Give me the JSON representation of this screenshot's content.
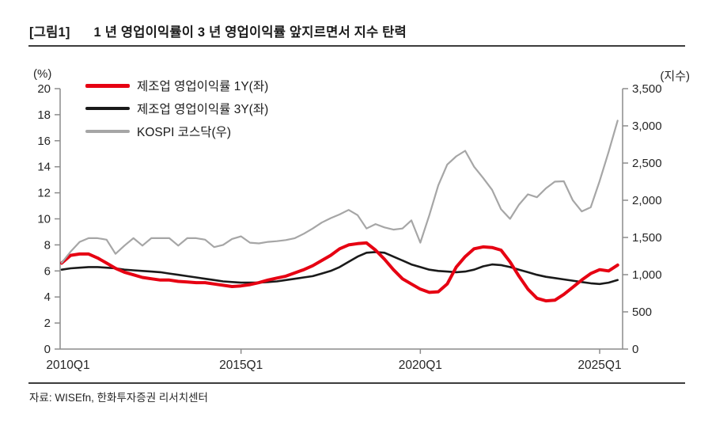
{
  "header": {
    "tag": "[그림1]",
    "title": "1 년 영업이익률이 3 년 영업이익률 앞지르면서 지수 탄력"
  },
  "source": "자료: WISEfn, 한화투자증권 리서치센터",
  "legend": [
    {
      "label": "제조업 영업이익률 1Y(좌)",
      "color": "#e60012"
    },
    {
      "label": "제조업 영업이익률 3Y(좌)",
      "color": "#1a1a1a"
    },
    {
      "label": "KOSPI 코스닥(우)",
      "color": "#a6a6a6"
    }
  ],
  "chart_data": {
    "type": "line",
    "title": "1 년 영업이익률이 3 년 영업이익률 앞지르면서 지수 탄력",
    "grid": false,
    "legend_position": "top-left-inside",
    "x": [
      "2010Q1",
      "2010Q2",
      "2010Q3",
      "2010Q4",
      "2011Q1",
      "2011Q2",
      "2011Q3",
      "2011Q4",
      "2012Q1",
      "2012Q2",
      "2012Q3",
      "2012Q4",
      "2013Q1",
      "2013Q2",
      "2013Q3",
      "2013Q4",
      "2014Q1",
      "2014Q2",
      "2014Q3",
      "2014Q4",
      "2015Q1",
      "2015Q2",
      "2015Q3",
      "2015Q4",
      "2016Q1",
      "2016Q2",
      "2016Q3",
      "2016Q4",
      "2017Q1",
      "2017Q2",
      "2017Q3",
      "2017Q4",
      "2018Q1",
      "2018Q2",
      "2018Q3",
      "2018Q4",
      "2019Q1",
      "2019Q2",
      "2019Q3",
      "2019Q4",
      "2020Q1",
      "2020Q2",
      "2020Q3",
      "2020Q4",
      "2021Q1",
      "2021Q2",
      "2021Q3",
      "2021Q4",
      "2022Q1",
      "2022Q2",
      "2022Q3",
      "2022Q4",
      "2023Q1",
      "2023Q2",
      "2023Q3",
      "2023Q4",
      "2024Q1",
      "2024Q2",
      "2024Q3",
      "2024Q4",
      "2025Q1",
      "2025Q2",
      "2025Q3"
    ],
    "x_ticks": [
      {
        "label": "2010Q1",
        "index": 0
      },
      {
        "label": "2015Q1",
        "index": 20
      },
      {
        "label": "2020Q1",
        "index": 40
      },
      {
        "label": "2025Q1",
        "index": 60
      }
    ],
    "left_axis": {
      "label": "(%)",
      "min": 0,
      "max": 20,
      "tick_values": [
        0,
        2,
        4,
        6,
        8,
        10,
        12,
        14,
        16,
        18,
        20
      ],
      "tick_labels": [
        "0",
        "2",
        "4",
        "6",
        "8",
        "10",
        "12",
        "14",
        "16",
        "18",
        "20"
      ]
    },
    "right_axis": {
      "label": "(지수)",
      "min": 0,
      "max": 3500,
      "tick_values": [
        0,
        500,
        1000,
        1500,
        2000,
        2500,
        3000,
        3500
      ],
      "tick_labels": [
        "0",
        "500",
        "1,000",
        "1,500",
        "2,000",
        "2,500",
        "3,000",
        "3,500"
      ]
    },
    "series": [
      {
        "name": "제조업 영업이익률 1Y(좌)",
        "axis": "left",
        "color": "#e60012",
        "width": 4,
        "values": [
          6.6,
          7.2,
          7.3,
          7.3,
          7.0,
          6.6,
          6.2,
          5.9,
          5.7,
          5.5,
          5.4,
          5.3,
          5.3,
          5.2,
          5.15,
          5.1,
          5.1,
          5.0,
          4.9,
          4.8,
          4.85,
          4.95,
          5.1,
          5.3,
          5.45,
          5.6,
          5.85,
          6.1,
          6.4,
          6.8,
          7.2,
          7.7,
          8.0,
          8.1,
          8.15,
          7.6,
          6.9,
          6.1,
          5.4,
          5.0,
          4.6,
          4.35,
          4.4,
          5.0,
          6.3,
          7.1,
          7.7,
          7.85,
          7.8,
          7.6,
          6.7,
          5.6,
          4.6,
          3.9,
          3.7,
          3.75,
          4.2,
          4.75,
          5.3,
          5.8,
          6.1,
          6.0,
          6.45
        ]
      },
      {
        "name": "제조업 영업이익률 3Y(좌)",
        "axis": "left",
        "color": "#1a1a1a",
        "width": 2.6,
        "values": [
          6.1,
          6.2,
          6.25,
          6.3,
          6.3,
          6.25,
          6.2,
          6.1,
          6.05,
          6.0,
          5.95,
          5.9,
          5.8,
          5.7,
          5.6,
          5.5,
          5.4,
          5.3,
          5.2,
          5.15,
          5.1,
          5.1,
          5.1,
          5.15,
          5.2,
          5.3,
          5.4,
          5.5,
          5.6,
          5.8,
          6.0,
          6.3,
          6.7,
          7.1,
          7.4,
          7.45,
          7.4,
          7.1,
          6.8,
          6.5,
          6.3,
          6.1,
          6.0,
          5.95,
          5.9,
          5.95,
          6.1,
          6.35,
          6.5,
          6.45,
          6.3,
          6.1,
          5.9,
          5.7,
          5.55,
          5.45,
          5.35,
          5.25,
          5.15,
          5.05,
          5.0,
          5.1,
          5.3
        ]
      },
      {
        "name": "KOSPI 코스닥(우)",
        "axis": "right",
        "color": "#a6a6a6",
        "width": 2.2,
        "values": [
          1160,
          1310,
          1440,
          1490,
          1490,
          1470,
          1280,
          1390,
          1490,
          1390,
          1490,
          1490,
          1490,
          1390,
          1490,
          1490,
          1470,
          1370,
          1400,
          1480,
          1515,
          1430,
          1420,
          1440,
          1450,
          1465,
          1490,
          1550,
          1620,
          1700,
          1760,
          1810,
          1870,
          1800,
          1620,
          1680,
          1635,
          1605,
          1620,
          1730,
          1430,
          1800,
          2200,
          2480,
          2590,
          2665,
          2450,
          2300,
          2140,
          1880,
          1750,
          1940,
          2080,
          2040,
          2160,
          2250,
          2255,
          2000,
          1850,
          1905,
          2260,
          2650,
          3070
        ]
      }
    ]
  }
}
